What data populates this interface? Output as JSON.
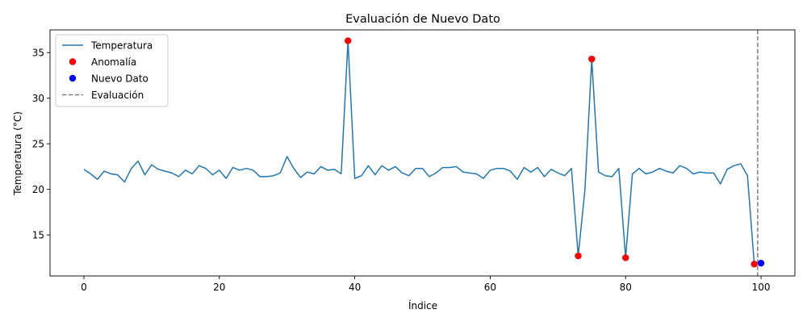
{
  "chart_data": {
    "type": "line",
    "title": "Evaluación de Nuevo Dato",
    "xlabel": "Índice",
    "ylabel": "Temperatura (°C)",
    "xlim": [
      -5,
      105
    ],
    "ylim": [
      10.5,
      37.5
    ],
    "xticks": [
      0,
      20,
      40,
      60,
      80,
      100
    ],
    "yticks": [
      15,
      20,
      25,
      30,
      35
    ],
    "grid": false,
    "legend_position": "upper-left",
    "series": [
      {
        "name": "Temperatura",
        "kind": "line",
        "color": "#1f77b4",
        "x": [
          0,
          1,
          2,
          3,
          4,
          5,
          6,
          7,
          8,
          9,
          10,
          11,
          12,
          13,
          14,
          15,
          16,
          17,
          18,
          19,
          20,
          21,
          22,
          23,
          24,
          25,
          26,
          27,
          28,
          29,
          30,
          31,
          32,
          33,
          34,
          35,
          36,
          37,
          38,
          39,
          40,
          41,
          42,
          43,
          44,
          45,
          46,
          47,
          48,
          49,
          50,
          51,
          52,
          53,
          54,
          55,
          56,
          57,
          58,
          59,
          60,
          61,
          62,
          63,
          64,
          65,
          66,
          67,
          68,
          69,
          70,
          71,
          72,
          73,
          74,
          75,
          76,
          77,
          78,
          79,
          80,
          81,
          82,
          83,
          84,
          85,
          86,
          87,
          88,
          89,
          90,
          91,
          92,
          93,
          94,
          95,
          96,
          97,
          98,
          99
        ],
        "y": [
          22.2,
          21.7,
          21.1,
          22.0,
          21.7,
          21.6,
          20.8,
          22.3,
          23.1,
          21.6,
          22.7,
          22.2,
          22.0,
          21.8,
          21.4,
          22.1,
          21.7,
          22.6,
          22.3,
          21.6,
          22.1,
          21.2,
          22.4,
          22.1,
          22.3,
          22.1,
          21.4,
          21.4,
          21.5,
          21.8,
          23.6,
          22.3,
          21.3,
          21.9,
          21.7,
          22.5,
          22.1,
          22.2,
          21.7,
          36.3,
          21.2,
          21.5,
          22.6,
          21.6,
          22.6,
          22.1,
          22.5,
          21.8,
          21.5,
          22.3,
          22.3,
          21.4,
          21.8,
          22.4,
          22.4,
          22.5,
          21.9,
          21.8,
          21.7,
          21.2,
          22.1,
          22.3,
          22.3,
          22.0,
          21.1,
          22.4,
          21.9,
          22.4,
          21.4,
          22.2,
          21.8,
          21.5,
          22.3,
          12.7,
          20.0,
          34.3,
          21.9,
          21.5,
          21.4,
          22.3,
          12.5,
          21.7,
          22.3,
          21.7,
          21.9,
          22.3,
          22.0,
          21.8,
          22.6,
          22.3,
          21.7,
          21.9,
          21.8,
          21.8,
          20.6,
          22.2,
          22.6,
          22.8,
          21.5,
          11.8
        ]
      },
      {
        "name": "Anomalía",
        "kind": "scatter",
        "color": "#ff0000",
        "x": [
          39,
          73,
          75,
          80,
          99
        ],
        "y": [
          36.3,
          12.7,
          34.3,
          12.5,
          11.8
        ]
      },
      {
        "name": "Nuevo Dato",
        "kind": "scatter",
        "color": "#0000ff",
        "x": [
          100
        ],
        "y": [
          11.9
        ]
      },
      {
        "name": "Evaluación",
        "kind": "vline",
        "color": "#808080",
        "x": [
          99.5
        ]
      }
    ]
  }
}
